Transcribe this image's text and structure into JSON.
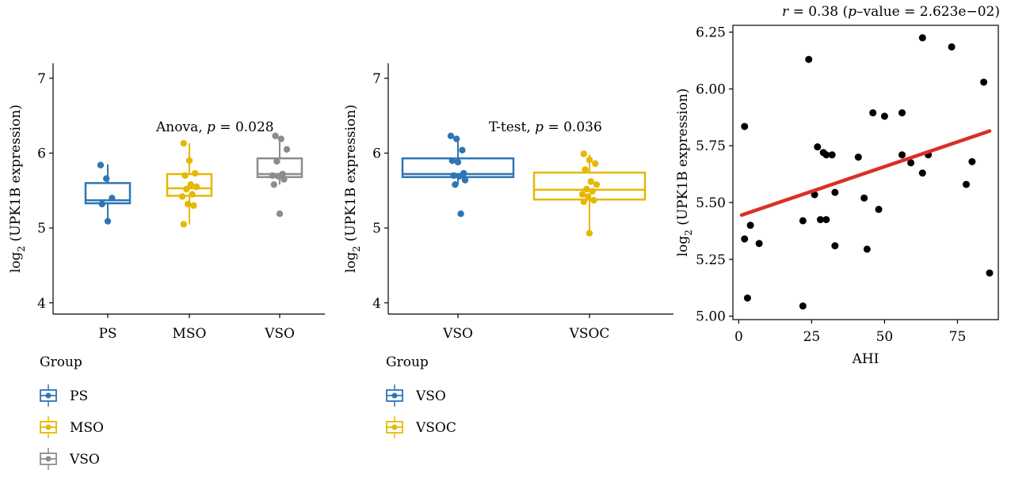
{
  "chart_data": [
    {
      "type": "box",
      "ylabel": "log",
      "ylabel_sub": "2",
      "ylabel_rest": " (UPK1B expression)",
      "ylim": [
        3.85,
        7.2
      ],
      "yticks": [
        "4",
        "5",
        "6",
        "7"
      ],
      "categories": [
        "PS",
        "MSO",
        "VSO"
      ],
      "colors": [
        "#2e75b6",
        "#e6b800",
        "#8c8c8c"
      ],
      "annotation_prefix": "Anova, ",
      "annotation_p": "p",
      "annotation_rest": " = 0.028",
      "legend_title": "Group",
      "legend": [
        "PS",
        "MSO",
        "VSO"
      ],
      "boxes": [
        {
          "q1": 5.33,
          "median": 5.37,
          "q3": 5.6,
          "wlo": 5.1,
          "whi": 5.85
        },
        {
          "q1": 5.43,
          "median": 5.53,
          "q3": 5.72,
          "wlo": 5.05,
          "whi": 6.13
        },
        {
          "q1": 5.68,
          "median": 5.72,
          "q3": 5.93,
          "wlo": 5.58,
          "whi": 6.22
        }
      ],
      "points": [
        [
          5.84,
          5.66,
          5.4,
          5.32,
          5.09
        ],
        [
          6.13,
          5.9,
          5.73,
          5.7,
          5.58,
          5.55,
          5.52,
          5.45,
          5.42,
          5.32,
          5.3,
          5.05
        ],
        [
          6.23,
          6.19,
          6.05,
          5.89,
          5.72,
          5.7,
          5.69,
          5.65,
          5.58,
          5.19
        ]
      ]
    },
    {
      "type": "box",
      "ylabel": "log",
      "ylabel_sub": "2",
      "ylabel_rest": " (UPK1B expression)",
      "ylim": [
        3.85,
        7.2
      ],
      "yticks": [
        "4",
        "5",
        "6",
        "7"
      ],
      "categories": [
        "VSO",
        "VSOC"
      ],
      "colors": [
        "#2e75b6",
        "#e6b800"
      ],
      "annotation_prefix": "T-test, ",
      "annotation_p": "p",
      "annotation_rest": " = 0.036",
      "legend_title": "Group",
      "legend": [
        "VSO",
        "VSOC"
      ],
      "boxes": [
        {
          "q1": 5.68,
          "median": 5.72,
          "q3": 5.93,
          "wlo": 5.58,
          "whi": 6.22
        },
        {
          "q1": 5.38,
          "median": 5.51,
          "q3": 5.74,
          "wlo": 4.93,
          "whi": 5.98
        }
      ],
      "points": [
        [
          6.23,
          6.19,
          6.04,
          5.9,
          5.88,
          5.73,
          5.7,
          5.69,
          5.64,
          5.58,
          5.19
        ],
        [
          5.99,
          5.91,
          5.86,
          5.78,
          5.62,
          5.58,
          5.52,
          5.49,
          5.45,
          5.42,
          5.37,
          5.35,
          4.93
        ]
      ]
    },
    {
      "type": "scatter",
      "title_r": "r",
      "title_mid": " = 0.38 (",
      "title_p": "p",
      "title_rest": "–value = 2.623e−02)",
      "xlabel": "AHI",
      "ylabel": "log",
      "ylabel_sub": "2",
      "ylabel_rest": " (UPK1B expression)",
      "xlim": [
        -2,
        89
      ],
      "ylim": [
        4.985,
        6.28
      ],
      "xticks": [
        0,
        25,
        50,
        75
      ],
      "xtick_labels": [
        "0",
        "25",
        "50",
        "75"
      ],
      "yticks": [
        5.0,
        5.25,
        5.5,
        5.75,
        6.0,
        6.25
      ],
      "ytick_labels": [
        "5.00",
        "5.25",
        "5.50",
        "5.75",
        "6.00",
        "6.25"
      ],
      "fit": {
        "x0": 1,
        "y0": 5.445,
        "x1": 86,
        "y1": 5.815,
        "color": "#d93025"
      },
      "x": [
        2,
        2,
        3,
        4,
        7,
        22,
        22,
        24,
        26,
        27,
        28,
        29,
        30,
        30,
        32,
        33,
        33,
        41,
        43,
        44,
        46,
        48,
        50,
        56,
        56,
        59,
        63,
        63,
        65,
        73,
        78,
        80,
        84,
        86
      ],
      "y": [
        5.835,
        5.34,
        5.08,
        5.4,
        5.32,
        5.42,
        5.045,
        6.13,
        5.535,
        5.745,
        5.425,
        5.72,
        5.71,
        5.425,
        5.71,
        5.545,
        5.31,
        5.7,
        5.52,
        5.295,
        5.895,
        5.47,
        5.88,
        5.895,
        5.71,
        5.675,
        6.225,
        5.63,
        5.71,
        6.185,
        5.58,
        5.68,
        6.03,
        5.19
      ],
      "point_color": "#000000"
    }
  ]
}
